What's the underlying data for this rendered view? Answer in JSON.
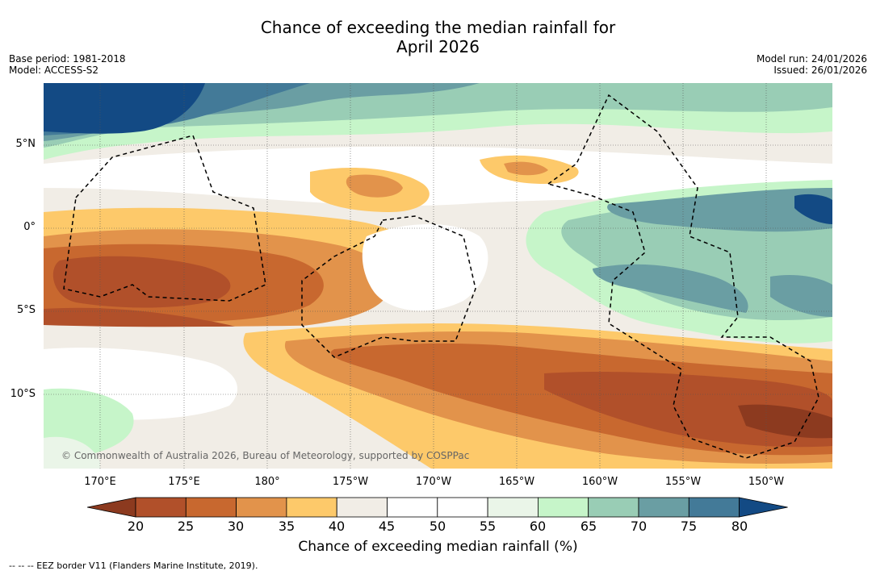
{
  "title_line1": "Chance of exceeding the median rainfall for",
  "title_line2": "April 2026",
  "meta_left": {
    "base_period": "Base period: 1981-2018",
    "model": "Model: ACCESS-S2"
  },
  "meta_right": {
    "model_run": "Model run: 24/01/2026",
    "issued": "Issued: 26/01/2026"
  },
  "lat_labels": [
    "5°N",
    "0°",
    "5°S",
    "10°S"
  ],
  "lon_labels": [
    "170°E",
    "175°E",
    "180°",
    "175°W",
    "170°W",
    "165°W",
    "160°W",
    "155°W",
    "150°W"
  ],
  "copyright": "© Commonwealth of Australia 2026, Bureau of Meteorology, supported by COSPPac",
  "colorbar": {
    "label": "Chance of exceeding median rainfall (%)",
    "ticks": [
      "20",
      "25",
      "30",
      "35",
      "40",
      "45",
      "50",
      "55",
      "60",
      "65",
      "70",
      "75",
      "80"
    ],
    "colors": [
      "#8c3a1f",
      "#b1502a",
      "#c8682f",
      "#e2934b",
      "#fdc96a",
      "#f1ede6",
      "#ffffff",
      "#ffffff",
      "#eaf5e8",
      "#c6f5c9",
      "#99cdb5",
      "#6a9ea3",
      "#437a98",
      "#134a84"
    ]
  },
  "eez_legend": "--  --  -- EEZ border V11 (Flanders Marine Institute, 2019)."
}
